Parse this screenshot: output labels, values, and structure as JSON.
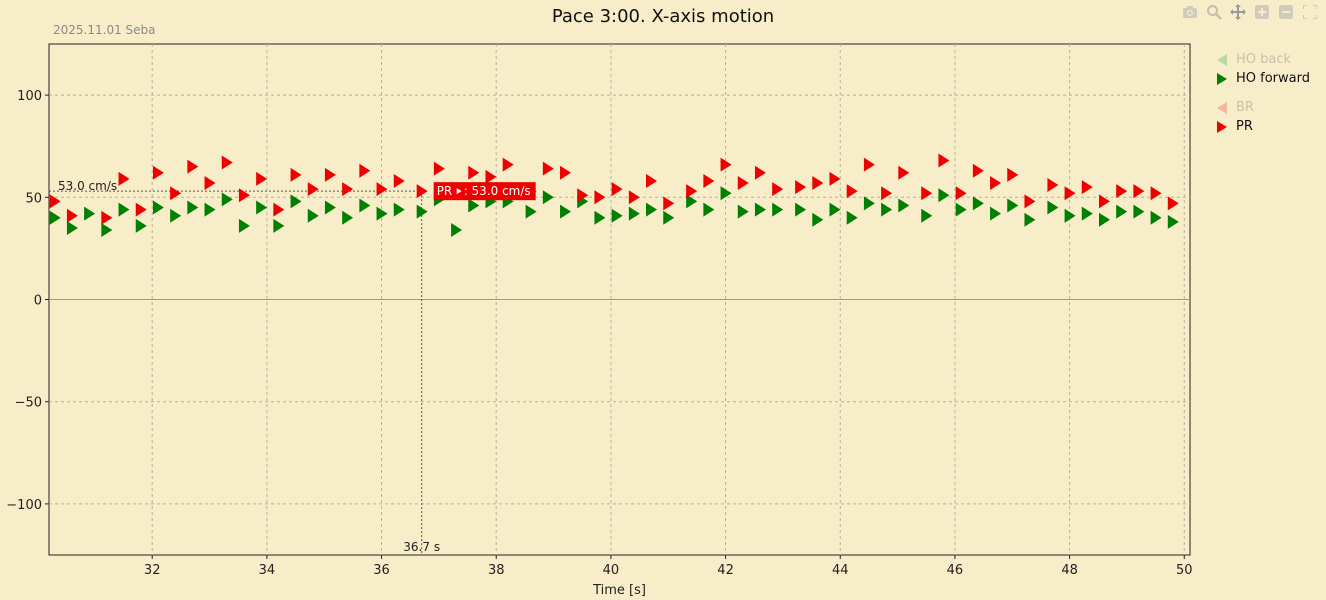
{
  "title": "Pace 3:00. X-axis motion",
  "subtitle": "2025.11.01 Seba",
  "toolbar": [
    "camera-icon",
    "zoom-icon",
    "pan-icon",
    "zoom-in-icon",
    "zoom-out-icon",
    "autoscale-icon"
  ],
  "legend": [
    {
      "label": "HO back",
      "color": "#5fb05f",
      "dimmed": true,
      "direction": "left"
    },
    {
      "label": "HO forward",
      "color": "#008000",
      "dimmed": false,
      "direction": "right"
    },
    {
      "label": "BR",
      "color": "#f08080",
      "dimmed": true,
      "direction": "left"
    },
    {
      "label": "PR",
      "color": "#ee0000",
      "dimmed": false,
      "direction": "right"
    }
  ],
  "hover": {
    "y_label": "53.0 cm/s",
    "x_label": "36.7 s",
    "tooltip_prefix": "PR",
    "tooltip_value": ": 53.0 cm/s"
  },
  "chart_data": {
    "type": "scatter",
    "title": "Pace 3:00. X-axis motion",
    "xlabel": "Time [s]",
    "ylabel": "",
    "xlim": [
      30.2,
      50.1
    ],
    "ylim": [
      -125,
      125
    ],
    "xticks": [
      32,
      34,
      36,
      38,
      40,
      42,
      44,
      46,
      48,
      50
    ],
    "yticks": [
      -100,
      -50,
      0,
      50,
      100
    ],
    "grid": true,
    "legend_position": "top-right",
    "hover_point": {
      "x": 36.7,
      "y": 53.0
    },
    "series": [
      {
        "name": "HO back",
        "color": "#5fb05f",
        "marker": "triangle-left",
        "x": [],
        "y": []
      },
      {
        "name": "HO forward",
        "color": "#008000",
        "marker": "triangle-right",
        "x": [
          30.3,
          30.6,
          30.9,
          31.2,
          31.5,
          31.8,
          32.1,
          32.4,
          32.7,
          33.0,
          33.3,
          33.6,
          33.9,
          34.2,
          34.5,
          34.8,
          35.1,
          35.4,
          35.7,
          36.0,
          36.3,
          36.7,
          37.0,
          37.3,
          37.6,
          37.9,
          38.2,
          38.6,
          38.9,
          39.2,
          39.5,
          39.8,
          40.1,
          40.4,
          40.7,
          41.0,
          41.4,
          41.7,
          42.0,
          42.3,
          42.6,
          42.9,
          43.3,
          43.6,
          43.9,
          44.2,
          44.5,
          44.8,
          45.1,
          45.5,
          45.8,
          46.1,
          46.4,
          46.7,
          47.0,
          47.3,
          47.7,
          48.0,
          48.3,
          48.6,
          48.9,
          49.2,
          49.5,
          49.8
        ],
        "y": [
          40,
          35,
          42,
          34,
          44,
          36,
          45,
          41,
          45,
          44,
          49,
          36,
          45,
          36,
          48,
          41,
          45,
          40,
          46,
          42,
          44,
          43,
          49,
          34,
          46,
          48,
          48,
          43,
          50,
          43,
          48,
          40,
          41,
          42,
          44,
          40,
          48,
          44,
          52,
          43,
          44,
          44,
          44,
          39,
          44,
          40,
          47,
          44,
          46,
          41,
          51,
          44,
          47,
          42,
          46,
          39,
          45,
          41,
          42,
          39,
          43,
          43,
          40,
          38
        ]
      },
      {
        "name": "BR",
        "color": "#f08080",
        "marker": "triangle-left",
        "x": [],
        "y": []
      },
      {
        "name": "PR",
        "color": "#ee0000",
        "marker": "triangle-right",
        "x": [
          30.3,
          30.6,
          31.2,
          31.5,
          31.8,
          32.1,
          32.4,
          32.7,
          33.0,
          33.3,
          33.6,
          33.9,
          34.2,
          34.5,
          34.8,
          35.1,
          35.4,
          35.7,
          36.0,
          36.3,
          36.7,
          37.0,
          37.3,
          37.6,
          37.9,
          38.2,
          38.6,
          38.9,
          39.2,
          39.5,
          39.8,
          40.1,
          40.4,
          40.7,
          41.0,
          41.4,
          41.7,
          42.0,
          42.3,
          42.6,
          42.9,
          43.3,
          43.6,
          43.9,
          44.2,
          44.5,
          44.8,
          45.1,
          45.5,
          45.8,
          46.1,
          46.4,
          46.7,
          47.0,
          47.3,
          47.7,
          48.0,
          48.3,
          48.6,
          48.9,
          49.2,
          49.5,
          49.8
        ],
        "y": [
          48,
          41,
          40,
          59,
          44,
          62,
          52,
          65,
          57,
          67,
          51,
          59,
          44,
          61,
          54,
          61,
          54,
          63,
          54,
          58,
          53,
          64,
          53,
          62,
          60,
          66,
          53,
          64,
          62,
          51,
          50,
          54,
          50,
          58,
          47,
          53,
          58,
          66,
          57,
          62,
          54,
          55,
          57,
          59,
          53,
          66,
          52,
          62,
          52,
          68,
          52,
          63,
          57,
          61,
          48,
          56,
          52,
          55,
          48,
          53,
          53,
          52,
          47
        ]
      }
    ]
  }
}
